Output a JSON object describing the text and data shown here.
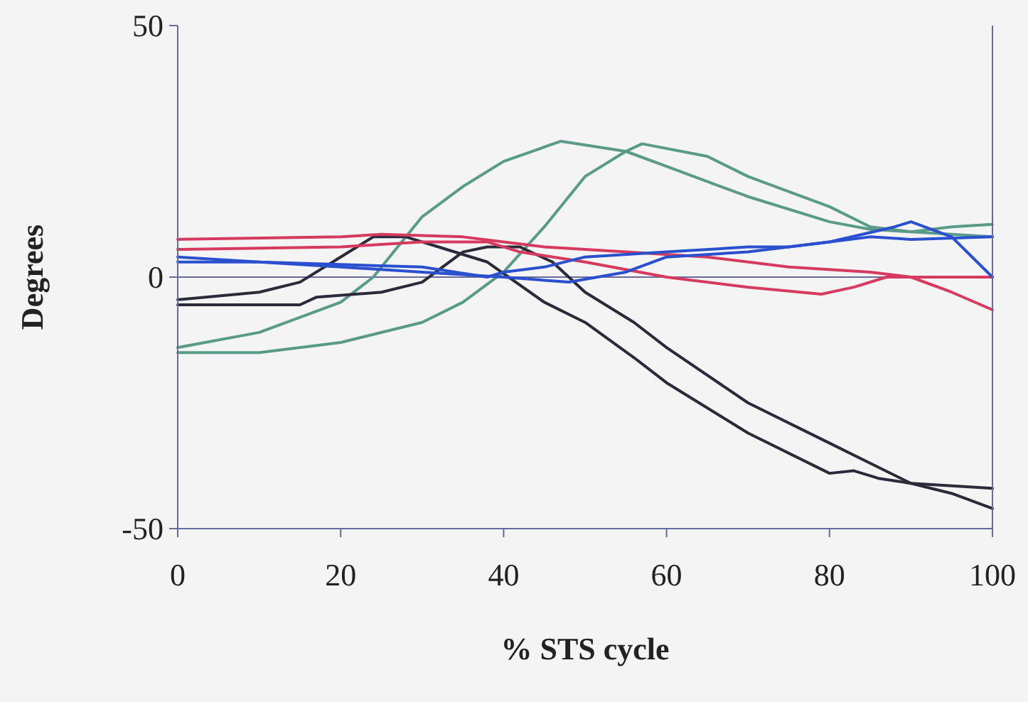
{
  "chart_data": {
    "type": "line",
    "xlabel": "% STS cycle",
    "ylabel": "Degrees",
    "xlim": [
      0,
      100
    ],
    "ylim": [
      -50,
      50
    ],
    "xticks": [
      0,
      20,
      40,
      60,
      80,
      100
    ],
    "yticks": [
      -50,
      0,
      50
    ],
    "grid": false,
    "line_style": "solid",
    "ref_lines": [
      {
        "axis": "y",
        "value": 0,
        "color": "#6a6a9a"
      }
    ],
    "series": [
      {
        "color": "#5a9a88",
        "x": [
          0,
          10,
          20,
          24,
          30,
          35,
          40,
          47,
          55,
          60,
          70,
          80,
          85,
          90,
          100
        ],
        "values": [
          -14,
          -11,
          -5,
          0,
          12,
          18,
          23,
          27,
          25,
          22,
          16,
          11,
          9.5,
          9,
          8
        ]
      },
      {
        "color": "#5a9a88",
        "x": [
          0,
          10,
          20,
          30,
          35,
          40,
          45,
          50,
          55,
          57,
          65,
          70,
          80,
          85,
          90,
          95,
          100
        ],
        "values": [
          -15,
          -15,
          -13,
          -9,
          -5,
          1,
          10,
          20,
          25,
          26.5,
          24,
          20,
          14,
          10,
          9,
          10,
          10.5
        ]
      },
      {
        "color": "#2a2a3a",
        "x": [
          0,
          10,
          15,
          20,
          24,
          28,
          32,
          38,
          45,
          50,
          56,
          60,
          70,
          80,
          83,
          86,
          90,
          100
        ],
        "values": [
          -4.5,
          -3,
          -1,
          4,
          8,
          8,
          6,
          3,
          -5,
          -9,
          -16,
          -21,
          -31,
          -39,
          -38.5,
          -40,
          -41,
          -42
        ]
      },
      {
        "color": "#2a2a3a",
        "x": [
          0,
          15,
          17,
          25,
          30,
          35,
          38,
          42,
          46,
          50,
          56,
          60,
          70,
          80,
          85,
          90,
          95,
          100
        ],
        "values": [
          -5.5,
          -5.5,
          -4,
          -3,
          -1,
          5,
          6,
          6,
          3,
          -3,
          -9,
          -14,
          -25,
          -33,
          -37,
          -41,
          -43,
          -46
        ]
      },
      {
        "color": "#d63a5e",
        "x": [
          0,
          20,
          25,
          35,
          40,
          45,
          55,
          65,
          75,
          85,
          90,
          95,
          100
        ],
        "values": [
          7.5,
          8,
          8.5,
          8,
          7,
          6,
          5,
          4,
          2,
          1,
          0,
          -3,
          -6.5
        ]
      },
      {
        "color": "#d63a5e",
        "x": [
          0,
          20,
          30,
          38,
          42,
          50,
          60,
          70,
          79,
          83,
          87,
          90,
          100
        ],
        "values": [
          5.5,
          6,
          7,
          7,
          5,
          3,
          0,
          -2,
          -3.4,
          -2,
          0,
          0,
          0
        ]
      },
      {
        "color": "#2a4fcf",
        "x": [
          0,
          10,
          20,
          30,
          38,
          40,
          45,
          50,
          60,
          70,
          75,
          80,
          88,
          90,
          95,
          100
        ],
        "values": [
          4,
          3,
          2.5,
          2,
          0,
          1,
          2,
          4,
          5,
          6,
          6,
          7,
          10,
          11,
          8,
          0
        ]
      },
      {
        "color": "#2a4fcf",
        "x": [
          0,
          10,
          20,
          30,
          40,
          48,
          55,
          60,
          70,
          80,
          85,
          90,
          100
        ],
        "values": [
          3,
          3,
          2,
          1,
          0,
          -1,
          1,
          4,
          5,
          7,
          8,
          7.5,
          8
        ]
      }
    ]
  }
}
